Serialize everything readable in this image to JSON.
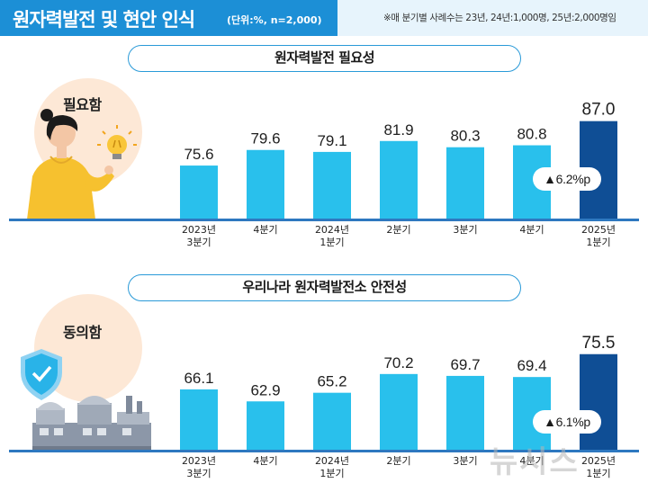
{
  "header": {
    "title": "원자력발전 및 현안 인식",
    "unit": "(단위:%, n=2,000)",
    "note": "※매 분기별 사례수는 23년, 24년:1,000명, 25년:2,000명임"
  },
  "colors": {
    "header_blue": "#1c8fd6",
    "bar_light": "#29c0ec",
    "bar_dark": "#0f4e95",
    "baseline": "#2e78c0",
    "circle": "#fde8d6"
  },
  "illustrations": {
    "top": "woman-with-lightbulb",
    "bottom": "nuclear-plant-with-shield"
  },
  "chart_data": [
    {
      "type": "bar",
      "title": "원자력발전 필요성",
      "series_label": "필요함",
      "categories": [
        "2023년\n3분기",
        "4분기",
        "2024년\n1분기",
        "2분기",
        "3분기",
        "4분기",
        "2025년\n1분기"
      ],
      "values": [
        75.6,
        79.6,
        79.1,
        81.9,
        80.3,
        80.8,
        87.0
      ],
      "value_labels": [
        "75.6",
        "79.6",
        "79.1",
        "81.9",
        "80.3",
        "80.8",
        "87.0"
      ],
      "highlight_index": 6,
      "annotation": "▲6.2%p",
      "ylim": [
        62,
        92
      ]
    },
    {
      "type": "bar",
      "title": "우리나라 원자력발전소 안전성",
      "series_label": "동의함",
      "categories": [
        "2023년\n3분기",
        "4분기",
        "2024년\n1분기",
        "2분기",
        "3분기",
        "4분기",
        "2025년\n1분기"
      ],
      "values": [
        66.1,
        62.9,
        65.2,
        70.2,
        69.7,
        69.4,
        75.5
      ],
      "value_labels": [
        "66.1",
        "62.9",
        "65.2",
        "70.2",
        "69.7",
        "69.4",
        "75.5"
      ],
      "highlight_index": 6,
      "annotation": "▲6.1%p",
      "ylim": [
        50,
        80
      ]
    }
  ],
  "watermark": "뉴시스"
}
